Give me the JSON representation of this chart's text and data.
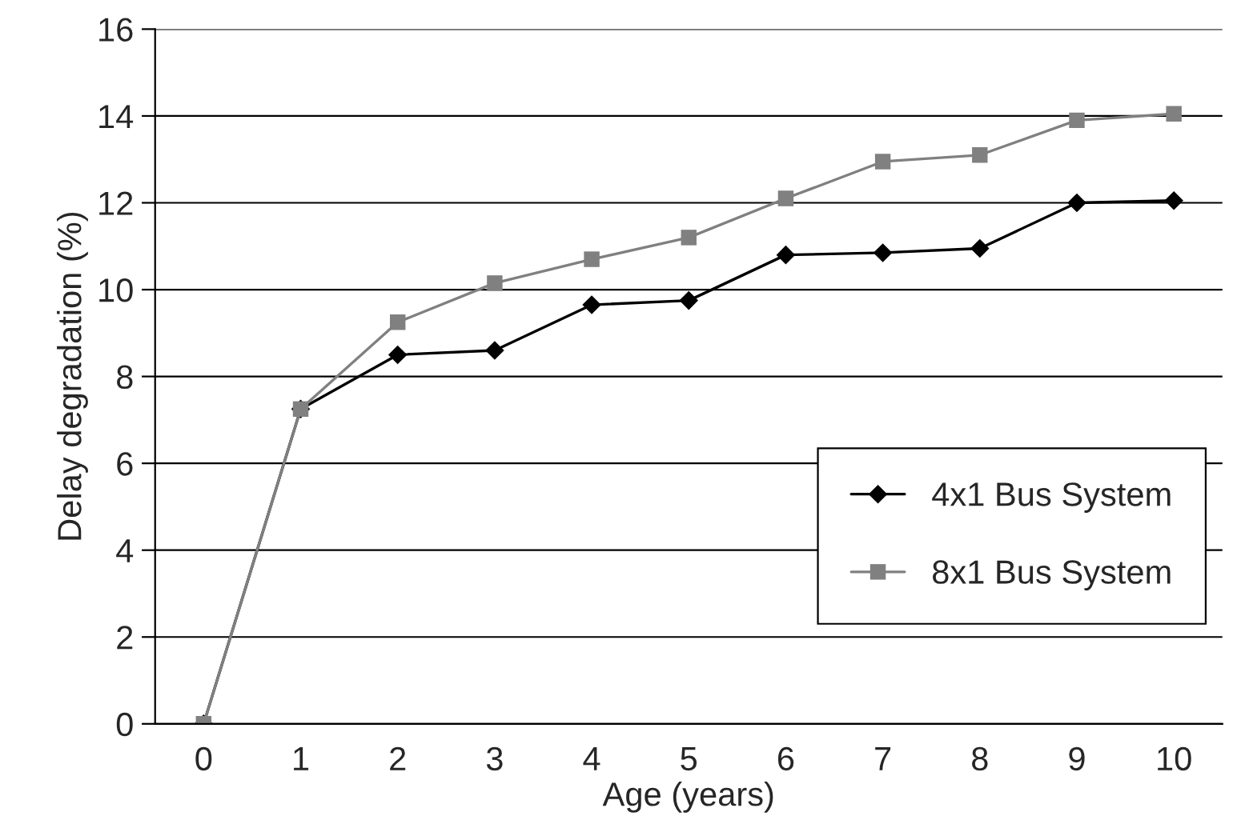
{
  "chart_data": {
    "type": "line",
    "xlabel": "Age (years)",
    "ylabel": "Delay degradation (%)",
    "categories": [
      "0",
      "1",
      "2",
      "3",
      "4",
      "5",
      "6",
      "7",
      "8",
      "9",
      "10"
    ],
    "series": [
      {
        "name": "4x1 Bus System",
        "color": "#000000",
        "marker": "diamond",
        "values": [
          0,
          7.25,
          8.5,
          8.6,
          9.65,
          9.75,
          10.8,
          10.85,
          10.95,
          12.0,
          12.05
        ]
      },
      {
        "name": "8x1 Bus System",
        "color": "#808080",
        "marker": "square",
        "values": [
          0,
          7.25,
          9.25,
          10.15,
          10.7,
          11.2,
          12.1,
          12.95,
          13.1,
          13.9,
          14.05
        ]
      }
    ],
    "ylim": [
      0,
      16
    ],
    "yticks": [
      0,
      2,
      4,
      6,
      8,
      10,
      12,
      14,
      16
    ],
    "grid": "y",
    "legend": "bottom right",
    "line_style": "solid"
  }
}
